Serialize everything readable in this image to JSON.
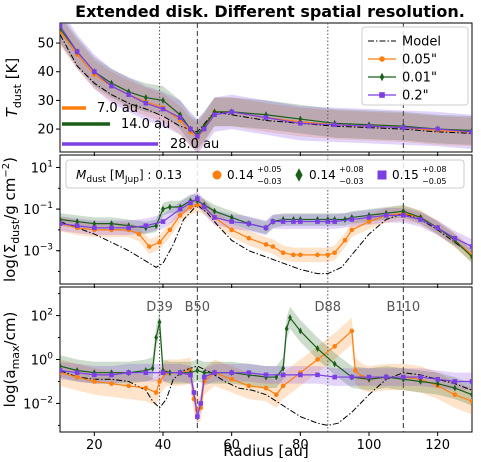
{
  "title": "Extended disk. Different spatial resolution.",
  "xlabel": "Radius [au]",
  "xticks": [
    20,
    40,
    60,
    80,
    100,
    120
  ],
  "colors": {
    "model": "#000000",
    "res005": "#ff7f0e",
    "res001": "#1a5e1a",
    "res02": "#7b3fe4",
    "ring_line": "#808080"
  },
  "features": {
    "dotted": [
      39,
      88
    ],
    "dashed": [
      50,
      110
    ],
    "labels": [
      "D39",
      "B50",
      "D88",
      "B110"
    ]
  },
  "legend": {
    "model": "Model",
    "res005": "0.05\"",
    "res001": "0.01\"",
    "res02": "0.2\""
  },
  "beams": [
    {
      "label": "7.0 au",
      "size": 7.0,
      "color": "#ff7f0e"
    },
    {
      "label": "14.0 au",
      "size": 14.0,
      "color": "#1a5e1a"
    },
    {
      "label": "28.0 au",
      "size": 28.0,
      "color": "#7b3fe4"
    }
  ],
  "mass_legend": {
    "model_label": "M",
    "model_sub": "dust",
    "model_unit": " [M",
    "model_unit_sub": "Jup",
    "model_unit_close": "] : ",
    "model_value": "0.13",
    "values": [
      {
        "val": "0.14",
        "up": "+0.05",
        "down": "−0.03",
        "color": "#ff7f0e",
        "marker": "circle"
      },
      {
        "val": "0.14",
        "up": "+0.08",
        "down": "−0.03",
        "color": "#1a5e1a",
        "marker": "diamond"
      },
      {
        "val": "0.15",
        "up": "+0.08",
        "down": "−0.05",
        "color": "#7b3fe4",
        "marker": "square"
      }
    ]
  },
  "chart_data": [
    {
      "type": "line",
      "ylabel_main": "T",
      "ylabel_sub": "dust",
      "ylabel_unit": " [K]",
      "ylim": [
        12,
        57
      ],
      "yticks": [
        20,
        30,
        40,
        50
      ],
      "xlim": [
        10,
        130
      ],
      "series": [
        {
          "key": "model",
          "x": [
            10,
            15,
            20,
            25,
            30,
            35,
            40,
            45,
            50,
            55,
            60,
            70,
            80,
            90,
            100,
            110,
            120,
            130
          ],
          "y": [
            53,
            42,
            36,
            32,
            29,
            27,
            24.5,
            21,
            19,
            26,
            25,
            23,
            22,
            21,
            20.5,
            20,
            19,
            18.5
          ]
        },
        {
          "key": "res005",
          "x": [
            10,
            15,
            20,
            25,
            30,
            35,
            40,
            45,
            48,
            50,
            52,
            55,
            60,
            70,
            80,
            90,
            100,
            110,
            120,
            130
          ],
          "y": [
            54,
            46,
            39,
            35,
            32,
            29.5,
            27.5,
            23,
            19,
            17,
            20,
            26,
            26,
            24,
            22.5,
            21.5,
            21,
            20.5,
            19.5,
            19
          ],
          "band": 5
        },
        {
          "key": "res001",
          "x": [
            10,
            15,
            20,
            25,
            30,
            35,
            40,
            45,
            48,
            50,
            52,
            55,
            60,
            70,
            80,
            90,
            100,
            110,
            120,
            130
          ],
          "y": [
            55,
            47,
            40,
            36,
            33,
            31,
            30,
            25,
            20,
            18,
            21,
            26,
            26,
            25,
            23.5,
            22,
            21.5,
            21,
            20,
            19.5
          ],
          "band": 5
        },
        {
          "key": "res02",
          "x": [
            10,
            15,
            20,
            25,
            30,
            35,
            40,
            45,
            48,
            50,
            52,
            55,
            60,
            70,
            80,
            90,
            100,
            110,
            120,
            130
          ],
          "y": [
            56,
            47,
            40,
            35,
            32,
            29,
            27,
            24,
            20,
            17.5,
            20,
            25,
            26,
            24,
            22,
            21.5,
            21,
            20.5,
            20,
            19
          ],
          "band": 6
        }
      ]
    },
    {
      "type": "line",
      "ylabel_pre": "log(Σ",
      "ylabel_sub": "dust",
      "ylabel_post": "/g cm",
      "ylabel_sup": "−2",
      "ylabel_close": ")",
      "yscale": "log",
      "ylim_log10": [
        -4.6,
        1.6
      ],
      "yticks_log10": [
        1,
        -1,
        -3
      ],
      "xlim": [
        10,
        130
      ],
      "series": [
        {
          "key": "model",
          "x": [
            10,
            15,
            20,
            25,
            30,
            35,
            38,
            40,
            43,
            46,
            50,
            53,
            56,
            60,
            65,
            70,
            75,
            80,
            85,
            88,
            92,
            96,
            100,
            105,
            110,
            115,
            120,
            125,
            130
          ],
          "y": [
            -1.6,
            -1.9,
            -2.2,
            -2.6,
            -3.0,
            -3.5,
            -3.8,
            -3.6,
            -2.7,
            -1.5,
            -0.8,
            -1.2,
            -1.8,
            -2.5,
            -3.0,
            -3.3,
            -3.6,
            -3.9,
            -4.1,
            -4.1,
            -3.8,
            -3.0,
            -2.2,
            -1.5,
            -1.2,
            -1.5,
            -2.0,
            -2.6,
            -3.2
          ]
        },
        {
          "key": "res005",
          "x": [
            10,
            15,
            20,
            25,
            30,
            33,
            36,
            39,
            42,
            45,
            48,
            50,
            52,
            55,
            60,
            65,
            70,
            72,
            75,
            78,
            80,
            85,
            88,
            90,
            93,
            95,
            100,
            105,
            110,
            115,
            120,
            125,
            130
          ],
          "y": [
            -1.7,
            -1.9,
            -2.0,
            -2.0,
            -2.0,
            -2.2,
            -2.8,
            -2.6,
            -2.0,
            -1.3,
            -0.9,
            -0.8,
            -0.9,
            -1.4,
            -2.0,
            -2.4,
            -2.7,
            -2.8,
            -3.1,
            -3.2,
            -3.2,
            -3.2,
            -3.2,
            -3.1,
            -2.5,
            -2.0,
            -1.6,
            -1.3,
            -1.2,
            -1.4,
            -1.9,
            -2.5,
            -3.2
          ],
          "band": 0.35
        },
        {
          "key": "res001",
          "x": [
            10,
            15,
            20,
            25,
            30,
            35,
            38,
            40,
            42,
            45,
            48,
            50,
            52,
            55,
            60,
            65,
            70,
            72,
            75,
            78,
            80,
            85,
            88,
            90,
            93,
            95,
            100,
            105,
            110,
            115,
            120,
            125,
            130
          ],
          "y": [
            -1.5,
            -1.6,
            -1.7,
            -1.7,
            -1.8,
            -1.9,
            -1.8,
            -1.0,
            -0.9,
            -0.9,
            -0.6,
            -0.6,
            -0.8,
            -1.1,
            -1.4,
            -1.7,
            -1.9,
            -1.6,
            -1.5,
            -1.5,
            -1.5,
            -1.5,
            -1.5,
            -1.5,
            -1.5,
            -1.4,
            -1.3,
            -1.2,
            -1.1,
            -1.4,
            -1.9,
            -2.5,
            -3.3
          ],
          "band": 0.3
        },
        {
          "key": "res02",
          "x": [
            10,
            15,
            20,
            25,
            30,
            35,
            40,
            45,
            48,
            50,
            52,
            55,
            60,
            65,
            70,
            72,
            75,
            78,
            80,
            85,
            88,
            90,
            95,
            100,
            105,
            110,
            115,
            120,
            125,
            130
          ],
          "y": [
            -1.7,
            -1.8,
            -1.9,
            -1.9,
            -1.9,
            -1.8,
            -1.6,
            -1.0,
            -0.7,
            -0.5,
            -0.9,
            -1.4,
            -1.6,
            -1.7,
            -1.9,
            -1.6,
            -1.6,
            -1.6,
            -1.6,
            -1.6,
            -1.6,
            -1.6,
            -1.5,
            -1.4,
            -1.3,
            -1.3,
            -1.5,
            -1.9,
            -2.4,
            -2.8
          ],
          "band": 0.35
        }
      ]
    },
    {
      "type": "line",
      "ylabel_pre": "log(a",
      "ylabel_sub": "max",
      "ylabel_post": "/cm)",
      "yscale": "log",
      "ylim_log10": [
        -3.3,
        3.3
      ],
      "yticks_log10": [
        2,
        0,
        -2
      ],
      "xlim": [
        10,
        130
      ],
      "series": [
        {
          "key": "model",
          "x": [
            10,
            15,
            20,
            25,
            30,
            35,
            37,
            39,
            41,
            43,
            46,
            50,
            54,
            58,
            62,
            66,
            70,
            75,
            80,
            85,
            88,
            91,
            95,
            100,
            105,
            110,
            115,
            120,
            125,
            130
          ],
          "y": [
            -0.5,
            -0.8,
            -0.9,
            -0.9,
            -1.0,
            -1.4,
            -1.9,
            -2.2,
            -1.8,
            -0.9,
            -0.5,
            -0.3,
            -0.6,
            -1.0,
            -1.3,
            -1.4,
            -1.6,
            -2.1,
            -2.6,
            -2.9,
            -3.0,
            -2.9,
            -2.4,
            -1.6,
            -0.9,
            -0.6,
            -0.7,
            -0.9,
            -1.1,
            -1.4
          ]
        },
        {
          "key": "res005",
          "x": [
            10,
            15,
            20,
            25,
            30,
            35,
            38,
            39,
            41,
            45,
            48,
            49,
            50,
            51,
            52,
            55,
            60,
            65,
            70,
            73,
            75,
            80,
            85,
            90,
            95,
            96,
            98,
            100,
            105,
            110,
            115,
            120,
            125,
            130
          ],
          "y": [
            -0.6,
            -0.8,
            -1.0,
            -1.1,
            -1.2,
            -1.3,
            -1.5,
            -1.0,
            -0.6,
            -0.6,
            -0.5,
            -1.8,
            -2.3,
            -2.2,
            -1.0,
            -0.6,
            -0.9,
            -1.2,
            -1.3,
            -1.6,
            -1.2,
            -0.6,
            0.0,
            0.6,
            1.3,
            -0.5,
            -0.8,
            -0.9,
            -0.8,
            -0.8,
            -0.9,
            -1.2,
            -1.6,
            -1.9
          ],
          "band": 0.6
        },
        {
          "key": "res001",
          "x": [
            10,
            15,
            20,
            25,
            30,
            35,
            37,
            38,
            39,
            40,
            42,
            45,
            48,
            50,
            52,
            55,
            60,
            65,
            70,
            73,
            75,
            76,
            77,
            80,
            85,
            90,
            95,
            100,
            105,
            110,
            115,
            120,
            125,
            130
          ],
          "y": [
            -0.3,
            -0.5,
            -0.6,
            -0.6,
            -0.6,
            -0.5,
            -0.4,
            1.0,
            1.7,
            -0.5,
            -0.6,
            -0.6,
            -0.6,
            -0.5,
            -0.6,
            -0.6,
            -0.6,
            -0.7,
            -0.8,
            -0.8,
            -0.4,
            1.4,
            1.9,
            1.3,
            0.5,
            -0.2,
            -0.8,
            -0.9,
            -0.8,
            -0.9,
            -1.0,
            -1.1,
            -1.3,
            -1.6
          ],
          "band": 0.5
        },
        {
          "key": "res02",
          "x": [
            10,
            15,
            20,
            25,
            30,
            35,
            40,
            45,
            48,
            49,
            50,
            51,
            52,
            55,
            60,
            65,
            70,
            75,
            80,
            85,
            90,
            95,
            100,
            105,
            110,
            115,
            120,
            125,
            130
          ],
          "y": [
            -0.5,
            -0.6,
            -0.7,
            -0.7,
            -0.6,
            -0.6,
            -0.6,
            -0.6,
            -0.7,
            -1.5,
            -2.6,
            -2.0,
            -0.8,
            -0.6,
            -0.6,
            -0.6,
            -0.7,
            -0.7,
            -0.7,
            -0.7,
            -0.8,
            -0.8,
            -0.8,
            -0.8,
            -0.8,
            -0.8,
            -0.9,
            -1.0,
            -1.0
          ],
          "band": 0.4
        }
      ]
    }
  ]
}
